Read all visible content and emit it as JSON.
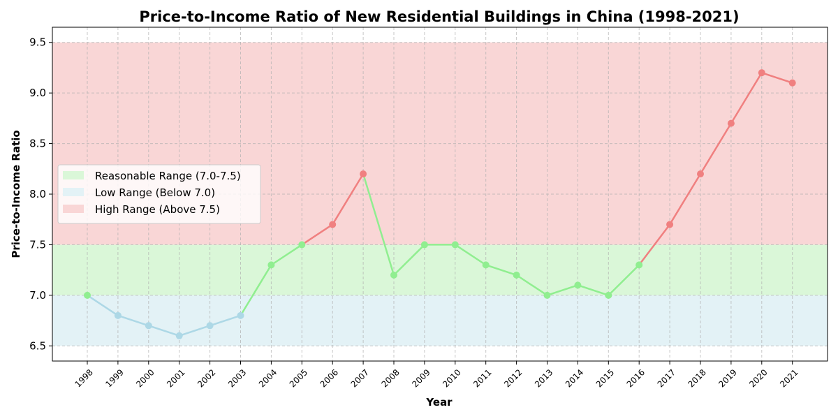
{
  "chart_data": {
    "type": "line",
    "title": "Price-to-Income Ratio of New Residential Buildings in China (1998-2021)",
    "xlabel": "Year",
    "ylabel": "Price-to-Income Ratio",
    "x": [
      1998,
      1999,
      2000,
      2001,
      2002,
      2003,
      2004,
      2005,
      2006,
      2007,
      2008,
      2009,
      2010,
      2011,
      2012,
      2013,
      2014,
      2015,
      2016,
      2017,
      2018,
      2019,
      2020,
      2021
    ],
    "values": [
      7.0,
      6.8,
      6.7,
      6.6,
      6.7,
      6.8,
      7.3,
      7.5,
      7.7,
      8.2,
      7.2,
      7.5,
      7.5,
      7.3,
      7.2,
      7.0,
      7.1,
      7.0,
      7.3,
      7.7,
      8.2,
      8.7,
      9.2,
      9.1
    ],
    "ylim": [
      6.35,
      9.65
    ],
    "yticks": [
      6.5,
      7.0,
      7.5,
      8.0,
      8.5,
      9.0,
      9.5
    ],
    "ytick_labels": [
      "6.5",
      "7.0",
      "7.5",
      "8.0",
      "8.5",
      "9.0",
      "9.5"
    ],
    "grid": true,
    "legend_position": "center-left",
    "bands": [
      {
        "name": "Reasonable Range (7.0-7.5)",
        "from": 7.0,
        "to": 7.5,
        "color": "#daf7d8"
      },
      {
        "name": "Low Range (Below 7.0)",
        "from": 6.5,
        "to": 7.0,
        "color": "#e3f2f6"
      },
      {
        "name": "High Range (Above 7.5)",
        "from": 7.5,
        "to": 9.5,
        "color": "#f9d6d6"
      }
    ],
    "colors": {
      "reasonable": "#90ee90",
      "low": "#add8e6",
      "high": "#f08080"
    }
  }
}
